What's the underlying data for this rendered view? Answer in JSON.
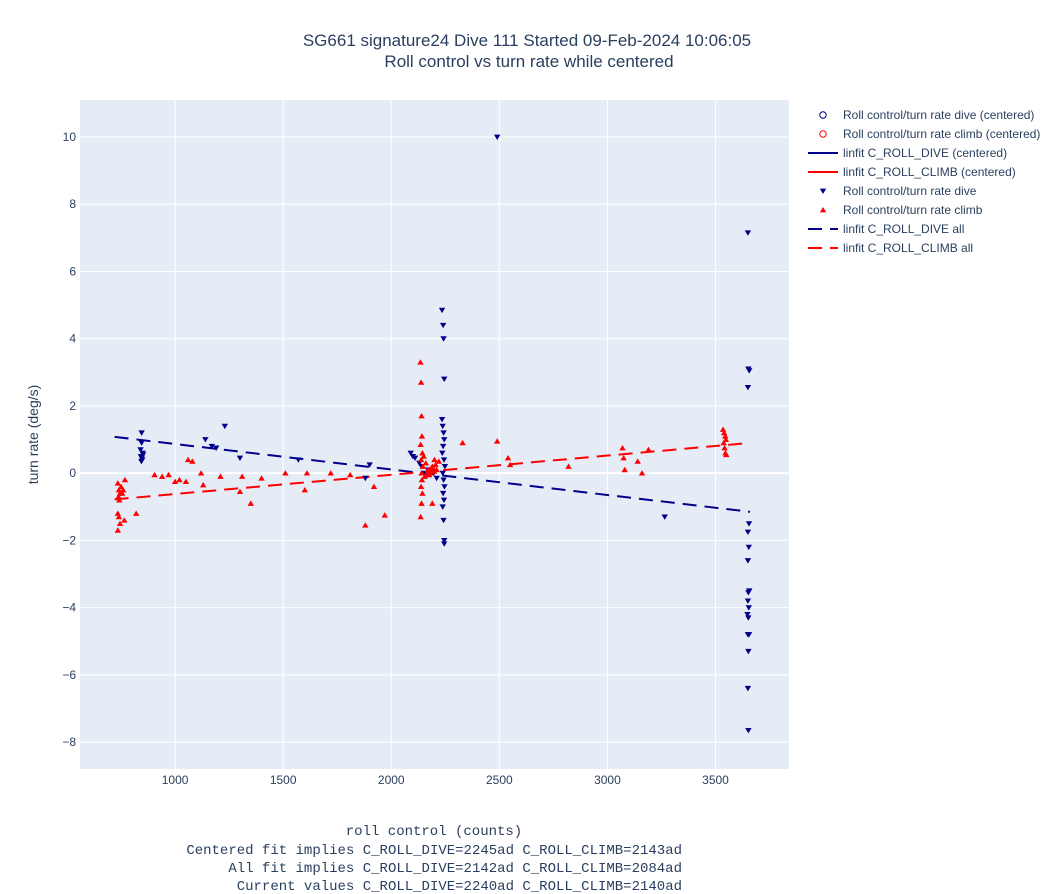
{
  "chart_data": {
    "type": "scatter",
    "title": "SG661 signature24 Dive 111 Started 09-Feb-2024 10:06:05",
    "subtitle": "Roll control vs turn rate while centered",
    "xlabel": "roll control (counts)",
    "ylabel": "turn rate (deg/s)",
    "footer_lines": [
      "Centered fit implies C_ROLL_DIVE=2245ad C_ROLL_CLIMB=2143ad",
      "All fit implies C_ROLL_DIVE=2142ad C_ROLL_CLIMB=2084ad",
      "Current values C_ROLL_DIVE=2240ad C_ROLL_CLIMB=2140ad"
    ],
    "xlim": [
      560,
      3840
    ],
    "ylim": [
      -8.8,
      11.1
    ],
    "xticks": [
      1000,
      1500,
      2000,
      2500,
      3000,
      3500
    ],
    "yticks": [
      -8,
      -6,
      -4,
      -2,
      0,
      2,
      4,
      6,
      8,
      10
    ],
    "grid": true,
    "legend_position": "right",
    "colors": {
      "dive": "#00008b",
      "climb": "#ff0000",
      "plot_bg": "#e5ecf6",
      "grid": "#ffffff"
    },
    "legend": [
      {
        "label": "Roll control/turn rate dive (centered)",
        "symbol": "open-circle",
        "color": "#00008b"
      },
      {
        "label": "Roll control/turn rate climb (centered)",
        "symbol": "open-circle",
        "color": "#ff0000"
      },
      {
        "label": "linfit C_ROLL_DIVE (centered)",
        "symbol": "solid-line",
        "color": "#00008b"
      },
      {
        "label": "linfit C_ROLL_CLIMB (centered)",
        "symbol": "solid-line",
        "color": "#ff0000"
      },
      {
        "label": "Roll control/turn rate dive",
        "symbol": "triangle-down",
        "color": "#00008b"
      },
      {
        "label": "Roll control/turn rate climb",
        "symbol": "triangle-up",
        "color": "#ff0000"
      },
      {
        "label": "linfit C_ROLL_DIVE all",
        "symbol": "dashed-line",
        "color": "#00008b"
      },
      {
        "label": "linfit C_ROLL_CLIMB all",
        "symbol": "dashed-line",
        "color": "#ff0000"
      }
    ],
    "series": [
      {
        "name": "Roll control/turn rate dive",
        "marker": "triangle-down",
        "points": [
          [
            845,
            1.2
          ],
          [
            845,
            0.9
          ],
          [
            840,
            0.7
          ],
          [
            850,
            0.6
          ],
          [
            842,
            0.5
          ],
          [
            848,
            0.4
          ],
          [
            844,
            0.35
          ],
          [
            852,
            0.55
          ],
          [
            846,
            0.45
          ],
          [
            1140,
            1.0
          ],
          [
            1230,
            1.4
          ],
          [
            1190,
            0.75
          ],
          [
            1170,
            0.8
          ],
          [
            1300,
            0.45
          ],
          [
            1570,
            0.4
          ],
          [
            1900,
            0.25
          ],
          [
            1880,
            -0.15
          ],
          [
            2090,
            0.6
          ],
          [
            2100,
            0.5
          ],
          [
            2110,
            0.45
          ],
          [
            2130,
            0.3
          ],
          [
            2140,
            0.2
          ],
          [
            2150,
            0.0
          ],
          [
            2160,
            -0.1
          ],
          [
            2170,
            0.1
          ],
          [
            2180,
            -0.05
          ],
          [
            2200,
            0.05
          ],
          [
            2210,
            -0.15
          ],
          [
            2235,
            4.85
          ],
          [
            2240,
            4.4
          ],
          [
            2242,
            4.0
          ],
          [
            2245,
            2.8
          ],
          [
            2235,
            1.6
          ],
          [
            2238,
            1.4
          ],
          [
            2242,
            1.2
          ],
          [
            2245,
            1.0
          ],
          [
            2240,
            0.8
          ],
          [
            2236,
            0.6
          ],
          [
            2244,
            0.4
          ],
          [
            2248,
            0.2
          ],
          [
            2238,
            0.0
          ],
          [
            2242,
            -0.2
          ],
          [
            2246,
            -0.4
          ],
          [
            2240,
            -0.6
          ],
          [
            2244,
            -0.8
          ],
          [
            2238,
            -1.0
          ],
          [
            2242,
            -1.4
          ],
          [
            2245,
            -2.0
          ],
          [
            2245,
            -2.1
          ],
          [
            2490,
            10.0
          ],
          [
            3265,
            -1.3
          ],
          [
            3650,
            7.15
          ],
          [
            3652,
            3.1
          ],
          [
            3656,
            3.05
          ],
          [
            3650,
            2.55
          ],
          [
            3655,
            -1.5
          ],
          [
            3650,
            -1.75
          ],
          [
            3654,
            -2.2
          ],
          [
            3650,
            -2.6
          ],
          [
            3656,
            -3.5
          ],
          [
            3652,
            -3.55
          ],
          [
            3650,
            -3.8
          ],
          [
            3654,
            -4.0
          ],
          [
            3648,
            -4.2
          ],
          [
            3652,
            -4.3
          ],
          [
            3650,
            -4.8
          ],
          [
            3655,
            -4.8
          ],
          [
            3652,
            -5.3
          ],
          [
            3650,
            -6.4
          ],
          [
            3652,
            -7.65
          ]
        ]
      },
      {
        "name": "Roll control/turn rate climb",
        "marker": "triangle-up",
        "points": [
          [
            735,
            -0.3
          ],
          [
            740,
            -0.5
          ],
          [
            745,
            -0.6
          ],
          [
            738,
            -0.7
          ],
          [
            742,
            -0.8
          ],
          [
            750,
            -0.4
          ],
          [
            755,
            -0.6
          ],
          [
            760,
            -0.5
          ],
          [
            735,
            -1.2
          ],
          [
            740,
            -1.3
          ],
          [
            745,
            -1.5
          ],
          [
            735,
            -1.7
          ],
          [
            765,
            -1.4
          ],
          [
            768,
            -0.2
          ],
          [
            820,
            -1.2
          ],
          [
            905,
            -0.05
          ],
          [
            940,
            -0.1
          ],
          [
            970,
            -0.05
          ],
          [
            1000,
            -0.25
          ],
          [
            1020,
            -0.2
          ],
          [
            1050,
            -0.25
          ],
          [
            1060,
            0.4
          ],
          [
            1080,
            0.35
          ],
          [
            1120,
            -0.0
          ],
          [
            1130,
            -0.35
          ],
          [
            1210,
            -0.1
          ],
          [
            1300,
            -0.55
          ],
          [
            1310,
            -0.1
          ],
          [
            1350,
            -0.9
          ],
          [
            1400,
            -0.15
          ],
          [
            1510,
            0.0
          ],
          [
            1600,
            -0.5
          ],
          [
            1610,
            0.0
          ],
          [
            1720,
            0.0
          ],
          [
            1810,
            -0.05
          ],
          [
            1880,
            -1.55
          ],
          [
            1920,
            -0.4
          ],
          [
            1970,
            -1.25
          ],
          [
            2135,
            3.3
          ],
          [
            2138,
            2.7
          ],
          [
            2140,
            1.7
          ],
          [
            2142,
            1.1
          ],
          [
            2136,
            0.85
          ],
          [
            2144,
            0.6
          ],
          [
            2138,
            0.4
          ],
          [
            2146,
            0.2
          ],
          [
            2140,
            0.0
          ],
          [
            2142,
            -0.2
          ],
          [
            2138,
            -0.4
          ],
          [
            2144,
            -0.6
          ],
          [
            2140,
            -0.9
          ],
          [
            2136,
            -1.3
          ],
          [
            2150,
            0.5
          ],
          [
            2160,
            0.3
          ],
          [
            2170,
            0.1
          ],
          [
            2180,
            0.0
          ],
          [
            2190,
            0.2
          ],
          [
            2200,
            0.4
          ],
          [
            2155,
            -0.1
          ],
          [
            2165,
            0.0
          ],
          [
            2175,
            -0.05
          ],
          [
            2185,
            0.15
          ],
          [
            2190,
            -0.9
          ],
          [
            2198,
            0.05
          ],
          [
            2205,
            0.25
          ],
          [
            2210,
            0.1
          ],
          [
            2220,
            0.35
          ],
          [
            2330,
            0.9
          ],
          [
            2490,
            0.95
          ],
          [
            2540,
            0.45
          ],
          [
            2550,
            0.25
          ],
          [
            2820,
            0.2
          ],
          [
            3070,
            0.75
          ],
          [
            3075,
            0.45
          ],
          [
            3080,
            0.1
          ],
          [
            3140,
            0.35
          ],
          [
            3160,
            0.0
          ],
          [
            3190,
            0.7
          ],
          [
            3535,
            1.3
          ],
          [
            3540,
            1.2
          ],
          [
            3545,
            1.1
          ],
          [
            3538,
            0.9
          ],
          [
            3542,
            0.75
          ],
          [
            3546,
            0.6
          ],
          [
            3550,
            0.55
          ],
          [
            3548,
            1.0
          ]
        ]
      },
      {
        "name": "linfit C_ROLL_DIVE all",
        "line": "dashed",
        "x": [
          720,
          3660
        ],
        "y": [
          1.08,
          -1.15
        ]
      },
      {
        "name": "linfit C_ROLL_CLIMB all",
        "line": "dashed",
        "x": [
          720,
          3660
        ],
        "y": [
          -0.78,
          0.9
        ]
      }
    ]
  }
}
